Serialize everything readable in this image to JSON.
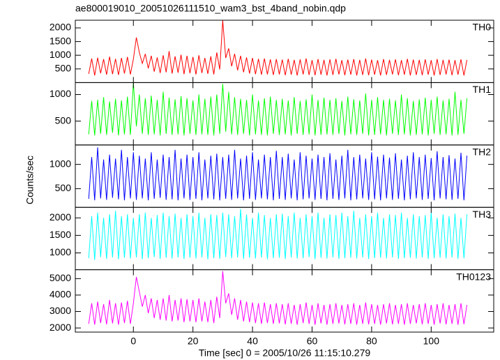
{
  "chart_data": {
    "type": "line",
    "title": "ae800019010_20051026111510_wam3_bst_4band_nobin.qdp",
    "xlabel": "Time [sec] 0 = 2005/10/26 11:15:10.279",
    "ylabel": "Counts/sec",
    "xlim": [
      -19.5,
      121
    ],
    "xticks": [
      0,
      20,
      40,
      60,
      80,
      100
    ],
    "x": [
      -15,
      -14,
      -13,
      -12,
      -11,
      -10,
      -9,
      -8,
      -7,
      -6,
      -5,
      -4,
      -3,
      -2,
      -1,
      0,
      1,
      2,
      3,
      4,
      5,
      6,
      7,
      8,
      9,
      10,
      11,
      12,
      13,
      14,
      15,
      16,
      17,
      18,
      19,
      20,
      21,
      22,
      23,
      24,
      25,
      26,
      27,
      28,
      29,
      30,
      31,
      32,
      33,
      34,
      35,
      36,
      37,
      38,
      39,
      40,
      41,
      42,
      43,
      44,
      45,
      46,
      47,
      48,
      49,
      50,
      51,
      52,
      53,
      54,
      55,
      56,
      57,
      58,
      59,
      60,
      61,
      62,
      63,
      64,
      65,
      66,
      67,
      68,
      69,
      70,
      71,
      72,
      73,
      74,
      75,
      76,
      77,
      78,
      79,
      80,
      81,
      82,
      83,
      84,
      85,
      86,
      87,
      88,
      89,
      90,
      91,
      92,
      93,
      94,
      95,
      96,
      97,
      98,
      99,
      100,
      101,
      102,
      103,
      104,
      105,
      106,
      107,
      108,
      109,
      110,
      111,
      112
    ],
    "series": [
      {
        "name": "TH0",
        "color": "#ff0000",
        "ylim": [
          0,
          2280
        ],
        "yticks": [
          500,
          1000,
          1500,
          2000
        ],
        "values": [
          320,
          880,
          260,
          910,
          340,
          860,
          290,
          950,
          310,
          870,
          280,
          900,
          330,
          940,
          300,
          860,
          1650,
          1100,
          700,
          1050,
          520,
          980,
          400,
          920,
          350,
          1000,
          380,
          1150,
          330,
          960,
          360,
          1020,
          310,
          980,
          340,
          940,
          300,
          1000,
          350,
          900,
          320,
          960,
          300,
          1100,
          480,
          2270,
          900,
          1250,
          600,
          1050,
          450,
          980,
          380,
          920,
          330,
          900,
          310,
          870,
          290,
          880,
          300,
          850,
          280,
          860,
          300,
          840,
          270,
          870,
          290,
          830,
          260,
          850,
          300,
          880,
          280,
          820,
          270,
          860,
          290,
          830,
          260,
          850,
          280,
          870,
          300,
          820,
          270,
          840,
          290,
          860,
          260,
          830,
          280,
          880,
          270,
          840,
          290,
          820,
          260,
          860,
          280,
          830,
          300,
          850,
          270,
          820,
          290,
          870,
          260,
          840,
          280,
          830,
          270,
          850,
          290,
          820,
          260,
          860,
          280,
          830,
          300,
          840,
          270,
          820,
          290,
          850,
          260,
          830
        ]
      },
      {
        "name": "TH1",
        "color": "#00ff00",
        "ylim": [
          50,
          1225
        ],
        "yticks": [
          500,
          1000
        ],
        "values": [
          250,
          880,
          230,
          900,
          260,
          950,
          240,
          870,
          280,
          920,
          230,
          890,
          250,
          960,
          240,
          1220,
          400,
          1000,
          260,
          930,
          240,
          980,
          250,
          900,
          230,
          1050,
          260,
          940,
          240,
          910,
          250,
          970,
          230,
          930,
          260,
          890,
          240,
          1000,
          250,
          920,
          240,
          960,
          230,
          1000,
          260,
          1200,
          300,
          1050,
          250,
          950,
          240,
          920,
          260,
          900,
          230,
          1000,
          250,
          890,
          240,
          930,
          230,
          960,
          260,
          900,
          240,
          920,
          250,
          890,
          230,
          950,
          260,
          880,
          240,
          910,
          250,
          1000,
          230,
          900,
          240,
          940,
          250,
          900,
          240,
          930,
          260,
          880,
          230,
          960,
          250,
          910,
          240,
          890,
          260,
          1020,
          230,
          900,
          240,
          950,
          250,
          900,
          230,
          920,
          260,
          890,
          240,
          1000,
          250,
          930,
          230,
          880,
          240,
          910,
          250,
          940,
          230,
          900,
          260,
          960,
          240,
          890,
          250,
          920,
          230,
          1050,
          240,
          900,
          260,
          930
        ]
      },
      {
        "name": "TH2",
        "color": "#0000ff",
        "ylim": [
          115,
          1400
        ],
        "yticks": [
          500,
          1000
        ],
        "values": [
          290,
          1150,
          260,
          1350,
          300,
          1100,
          270,
          1200,
          310,
          1120,
          280,
          1300,
          260,
          1150,
          300,
          1250,
          270,
          1180,
          300,
          1120,
          260,
          1250,
          290,
          1100,
          310,
          1200,
          270,
          1150,
          280,
          1300,
          260,
          1120,
          300,
          1200,
          270,
          1150,
          290,
          1250,
          260,
          1100,
          300,
          1180,
          280,
          1220,
          260,
          1150,
          290,
          1200,
          270,
          1300,
          300,
          1120,
          260,
          1180,
          290,
          1250,
          270,
          1100,
          300,
          1200,
          280,
          1150,
          260,
          1280,
          290,
          1150,
          270,
          1220,
          300,
          1100,
          260,
          1250,
          280,
          1180,
          300,
          1120,
          270,
          1200,
          290,
          1150,
          260,
          1230,
          290,
          1100,
          270,
          1180,
          300,
          1300,
          260,
          1150,
          280,
          1200,
          300,
          1120,
          270,
          1250,
          280,
          1160,
          260,
          1200,
          300,
          1140,
          270,
          1230,
          290,
          1100,
          260,
          1180,
          280,
          1250,
          300,
          1150,
          270,
          1200,
          290,
          1130,
          260,
          1270,
          300,
          1150,
          280,
          1190,
          270,
          1120,
          290,
          1240,
          260,
          1180
        ]
      },
      {
        "name": "TH3",
        "color": "#00ffff",
        "ylim": [
          520,
          2300
        ],
        "yticks": [
          1000,
          1500,
          2000
        ],
        "values": [
          850,
          2050,
          800,
          2150,
          880,
          2000,
          830,
          2100,
          870,
          2200,
          820,
          2050,
          860,
          2100,
          840,
          2000,
          870,
          2100,
          820,
          2150,
          850,
          2000,
          880,
          2080,
          830,
          2150,
          860,
          2050,
          840,
          2120,
          870,
          2000,
          830,
          2100,
          860,
          2050,
          840,
          2150,
          870,
          2000,
          820,
          2100,
          850,
          2080,
          830,
          2150,
          880,
          2100,
          850,
          2050,
          870,
          2250,
          830,
          2100,
          860,
          2000,
          840,
          2150,
          870,
          2080,
          820,
          2000,
          850,
          2100,
          860,
          2120,
          830,
          2050,
          870,
          2150,
          840,
          2000,
          850,
          2100,
          880,
          2050,
          820,
          2150,
          860,
          2000,
          840,
          2100,
          870,
          2080,
          830,
          2150,
          850,
          2050,
          860,
          2200,
          840,
          2000,
          870,
          2100,
          830,
          2050,
          850,
          2150,
          860,
          2000,
          840,
          2100,
          870,
          2080,
          830,
          2150,
          850,
          2000,
          860,
          2100,
          840,
          2050,
          870,
          2080,
          830,
          2150,
          850,
          2000,
          860,
          2100,
          840,
          2050,
          870,
          2120,
          830,
          2000,
          850,
          2100
        ]
      },
      {
        "name": "TH0123",
        "color": "#ff00ff",
        "ylim": [
          1750,
          5540
        ],
        "yticks": [
          2000,
          3000,
          4000,
          5000
        ],
        "values": [
          2250,
          3500,
          2200,
          3600,
          2300,
          3450,
          2220,
          3700,
          2280,
          3500,
          2200,
          3550,
          2300,
          3650,
          2250,
          3500,
          5100,
          4200,
          3300,
          4000,
          2900,
          3800,
          2600,
          3700,
          2500,
          3800,
          2450,
          4000,
          2400,
          3700,
          2450,
          3800,
          2350,
          3750,
          2400,
          3700,
          2350,
          3800,
          2400,
          3600,
          2350,
          3700,
          2300,
          3900,
          2600,
          5450,
          3500,
          4100,
          2800,
          3800,
          2500,
          3700,
          2400,
          3600,
          2350,
          3550,
          2300,
          3500,
          2250,
          3550,
          2300,
          3450,
          2250,
          3500,
          2280,
          3450,
          2220,
          3500,
          2250,
          3400,
          2200,
          3450,
          2300,
          3550,
          2250,
          3400,
          2200,
          3500,
          2280,
          3400,
          2200,
          3450,
          2250,
          3500,
          2280,
          3400,
          2220,
          3450,
          2250,
          3500,
          2200,
          3400,
          2250,
          3550,
          2220,
          3450,
          2250,
          3400,
          2200,
          3450,
          2280,
          3500,
          2220,
          3400,
          2250,
          3450,
          2200,
          3500,
          2250,
          3400,
          2280,
          3450,
          2220,
          3500,
          2250,
          3400,
          2200,
          3450,
          2280,
          3500,
          2220,
          3400,
          2250,
          3450,
          2200,
          3500,
          2230,
          3400
        ]
      }
    ]
  }
}
